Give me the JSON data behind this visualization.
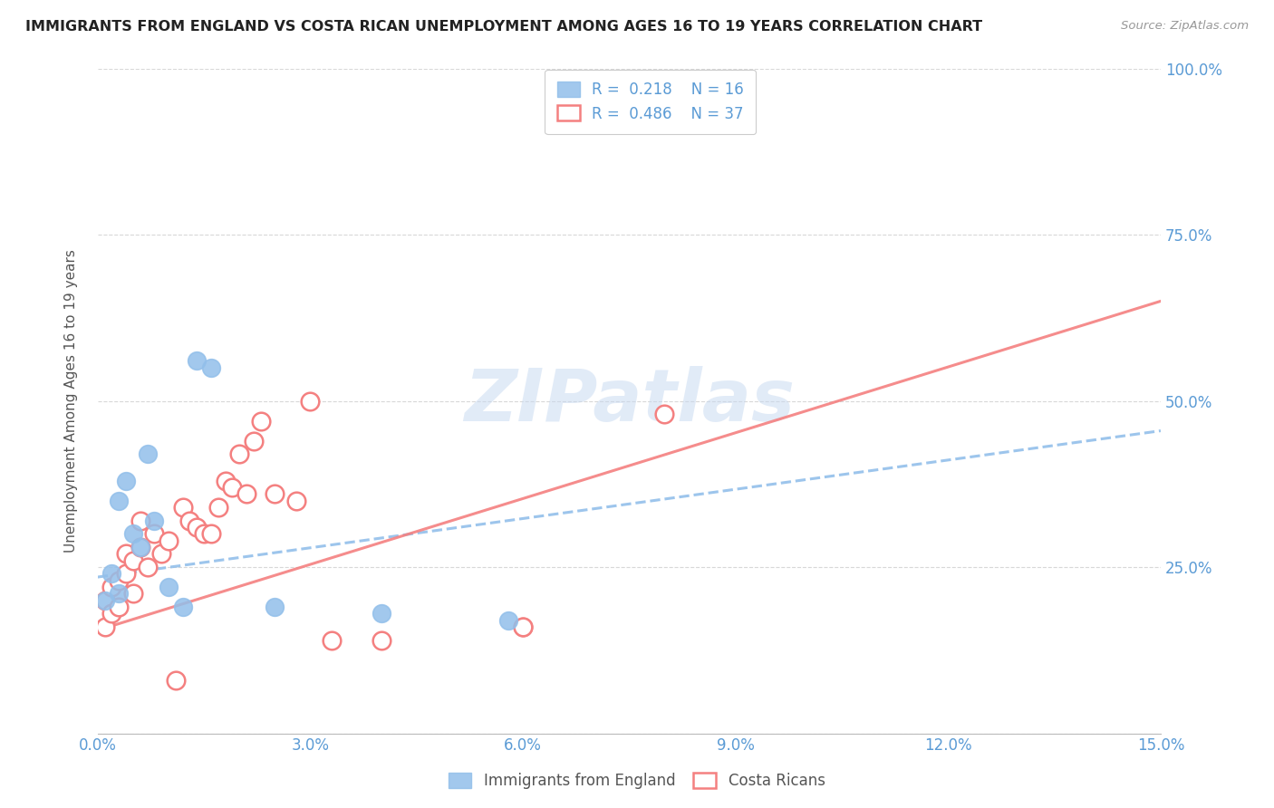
{
  "title": "IMMIGRANTS FROM ENGLAND VS COSTA RICAN UNEMPLOYMENT AMONG AGES 16 TO 19 YEARS CORRELATION CHART",
  "source": "Source: ZipAtlas.com",
  "ylabel": "Unemployment Among Ages 16 to 19 years",
  "xmin": 0.0,
  "xmax": 0.15,
  "ymin": 0.0,
  "ymax": 1.0,
  "yticks_right": [
    0.25,
    0.5,
    0.75,
    1.0
  ],
  "ytick_labels_right": [
    "25.0%",
    "50.0%",
    "75.0%",
    "100.0%"
  ],
  "legend_label1": "Immigrants from England",
  "legend_label2": "Costa Ricans",
  "r1": "0.218",
  "n1": "16",
  "r2": "0.486",
  "n2": "37",
  "color_blue": "#92bfea",
  "color_pink": "#f48080",
  "color_axis_label": "#5b9bd5",
  "color_grid": "#d8d8d8",
  "background_color": "#ffffff",
  "watermark": "ZIPatlas",
  "blue_x": [
    0.001,
    0.002,
    0.003,
    0.003,
    0.004,
    0.005,
    0.006,
    0.007,
    0.008,
    0.01,
    0.012,
    0.014,
    0.016,
    0.025,
    0.04,
    0.058
  ],
  "blue_y": [
    0.2,
    0.24,
    0.21,
    0.35,
    0.38,
    0.3,
    0.28,
    0.42,
    0.32,
    0.22,
    0.19,
    0.56,
    0.55,
    0.19,
    0.18,
    0.17
  ],
  "pink_x": [
    0.001,
    0.001,
    0.002,
    0.002,
    0.003,
    0.003,
    0.004,
    0.004,
    0.005,
    0.005,
    0.006,
    0.006,
    0.007,
    0.008,
    0.009,
    0.01,
    0.011,
    0.012,
    0.013,
    0.014,
    0.015,
    0.016,
    0.017,
    0.018,
    0.019,
    0.02,
    0.021,
    0.022,
    0.023,
    0.025,
    0.028,
    0.03,
    0.033,
    0.04,
    0.06,
    0.06,
    0.08
  ],
  "pink_y": [
    0.16,
    0.2,
    0.18,
    0.22,
    0.19,
    0.23,
    0.24,
    0.27,
    0.21,
    0.26,
    0.28,
    0.32,
    0.25,
    0.3,
    0.27,
    0.29,
    0.08,
    0.34,
    0.32,
    0.31,
    0.3,
    0.3,
    0.34,
    0.38,
    0.37,
    0.42,
    0.36,
    0.44,
    0.47,
    0.36,
    0.35,
    0.5,
    0.14,
    0.14,
    0.16,
    0.16,
    0.48
  ],
  "blue_trend_x": [
    0.0,
    0.15
  ],
  "blue_trend_y": [
    0.235,
    0.455
  ],
  "pink_trend_x": [
    0.0,
    0.15
  ],
  "pink_trend_y": [
    0.155,
    0.65
  ]
}
